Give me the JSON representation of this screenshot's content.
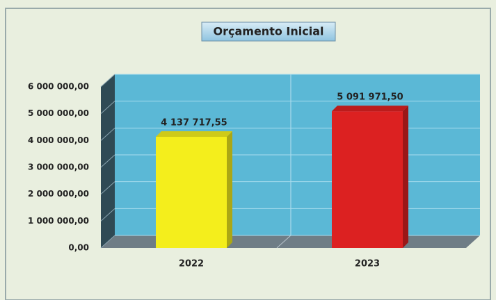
{
  "chart_data": {
    "type": "bar3d",
    "title": "Orçamento Inicial",
    "categories": [
      "2022",
      "2023"
    ],
    "values": [
      4137717.55,
      5091971.5
    ],
    "value_labels": [
      "4 137 717,55",
      "5 091 971,50"
    ],
    "colors": [
      "#f4ee1c",
      "#dc2121"
    ],
    "ylim": [
      0,
      6000000
    ],
    "yticks": [
      {
        "value": 0,
        "label": "0,00"
      },
      {
        "value": 1000000,
        "label": "1 000 000,00"
      },
      {
        "value": 2000000,
        "label": "2 000 000,00"
      },
      {
        "value": 3000000,
        "label": "3 000 000,00"
      },
      {
        "value": 4000000,
        "label": "4 000 000,00"
      },
      {
        "value": 5000000,
        "label": "5 000 000,00"
      },
      {
        "value": 6000000,
        "label": "6 000 000,00"
      }
    ],
    "grid": true
  }
}
